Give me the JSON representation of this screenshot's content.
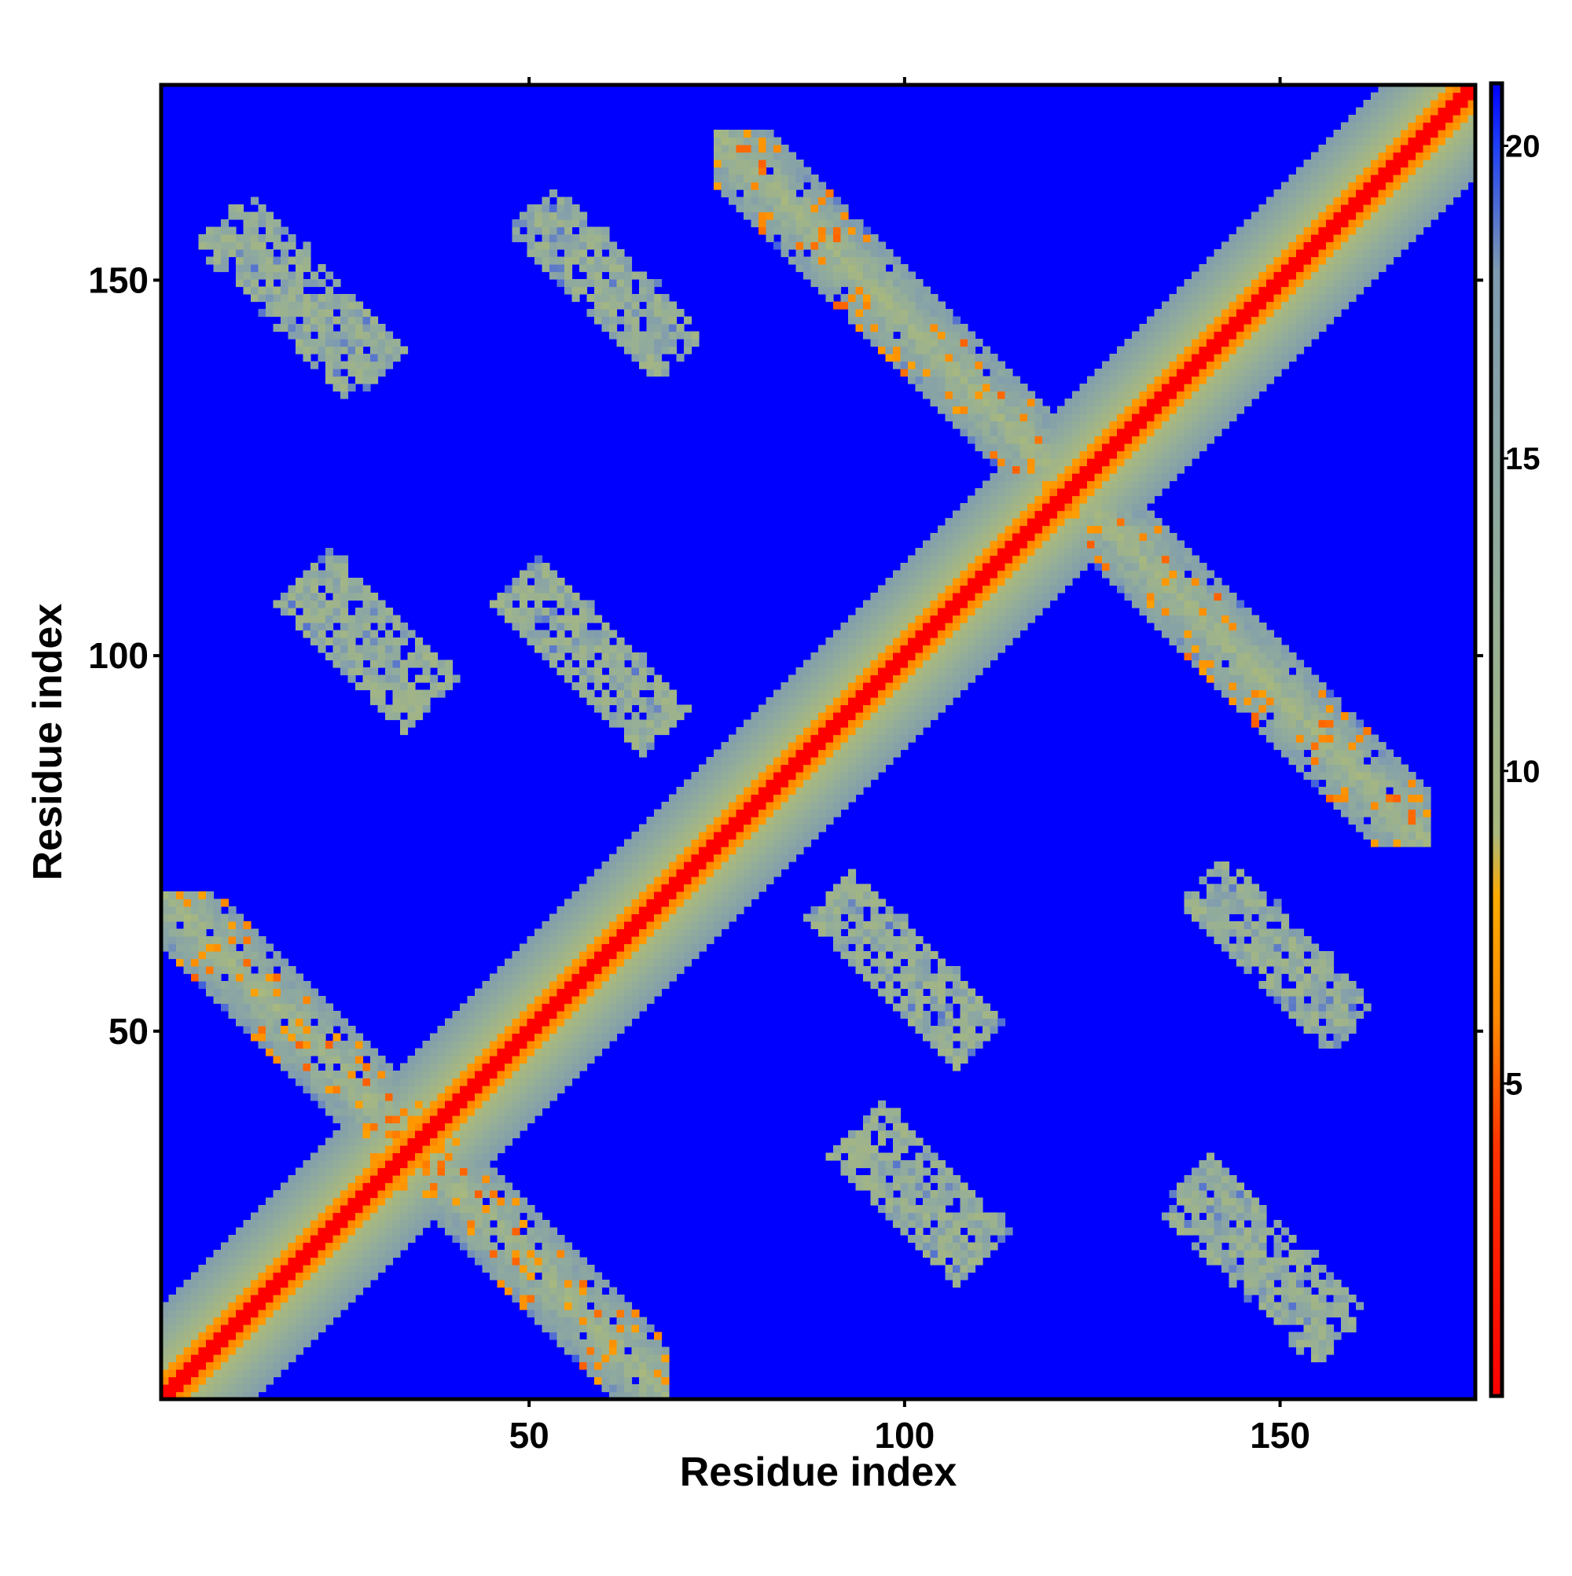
{
  "chart_data": {
    "type": "heatmap",
    "title": "",
    "xlabel": "Residue index",
    "ylabel": "Residue index",
    "xlim": [
      1,
      176
    ],
    "ylim": [
      1,
      176
    ],
    "xticks": [
      50,
      100,
      150
    ],
    "yticks": [
      50,
      100,
      150
    ],
    "colorbar": {
      "range": [
        0,
        21
      ],
      "ticks": [
        5,
        10,
        15,
        20
      ],
      "stops": [
        {
          "value": 0,
          "color": "#ff0000"
        },
        {
          "value": 4,
          "color": "#ff3300"
        },
        {
          "value": 6,
          "color": "#ff8800"
        },
        {
          "value": 8,
          "color": "#ffaa00"
        },
        {
          "value": 9,
          "color": "#a8b87e"
        },
        {
          "value": 13,
          "color": "#93ad9a"
        },
        {
          "value": 18,
          "color": "#7f9bb0"
        },
        {
          "value": 20,
          "color": "#1f3ff5"
        },
        {
          "value": 21,
          "color": "#0000ff"
        }
      ],
      "background_color": "#0000ff"
    },
    "structure": {
      "description_free": true,
      "diagonal_band_halfwidth": 12,
      "antiparallel_contact_regions": [
        {
          "x": [
            1,
            68
          ],
          "y": [
            1,
            68
          ],
          "axis": "anti"
        },
        {
          "x": [
            75,
            170
          ],
          "y": [
            75,
            170
          ],
          "axis": "anti"
        }
      ],
      "diffuse_contact_regions": [
        {
          "x_center": 18,
          "y_center": 148,
          "half_len": 14,
          "half_width": 6
        },
        {
          "x_center": 60,
          "y_center": 150,
          "half_len": 14,
          "half_width": 6
        },
        {
          "x_center": 28,
          "y_center": 102,
          "half_len": 12,
          "half_width": 7
        },
        {
          "x_center": 58,
          "y_center": 100,
          "half_len": 14,
          "half_width": 6
        },
        {
          "x_center": 100,
          "y_center": 58,
          "half_len": 14,
          "half_width": 6
        },
        {
          "x_center": 150,
          "y_center": 60,
          "half_len": 13,
          "half_width": 6
        },
        {
          "x_center": 102,
          "y_center": 28,
          "half_len": 12,
          "half_width": 7
        },
        {
          "x_center": 148,
          "y_center": 20,
          "half_len": 14,
          "half_width": 6
        }
      ]
    }
  }
}
